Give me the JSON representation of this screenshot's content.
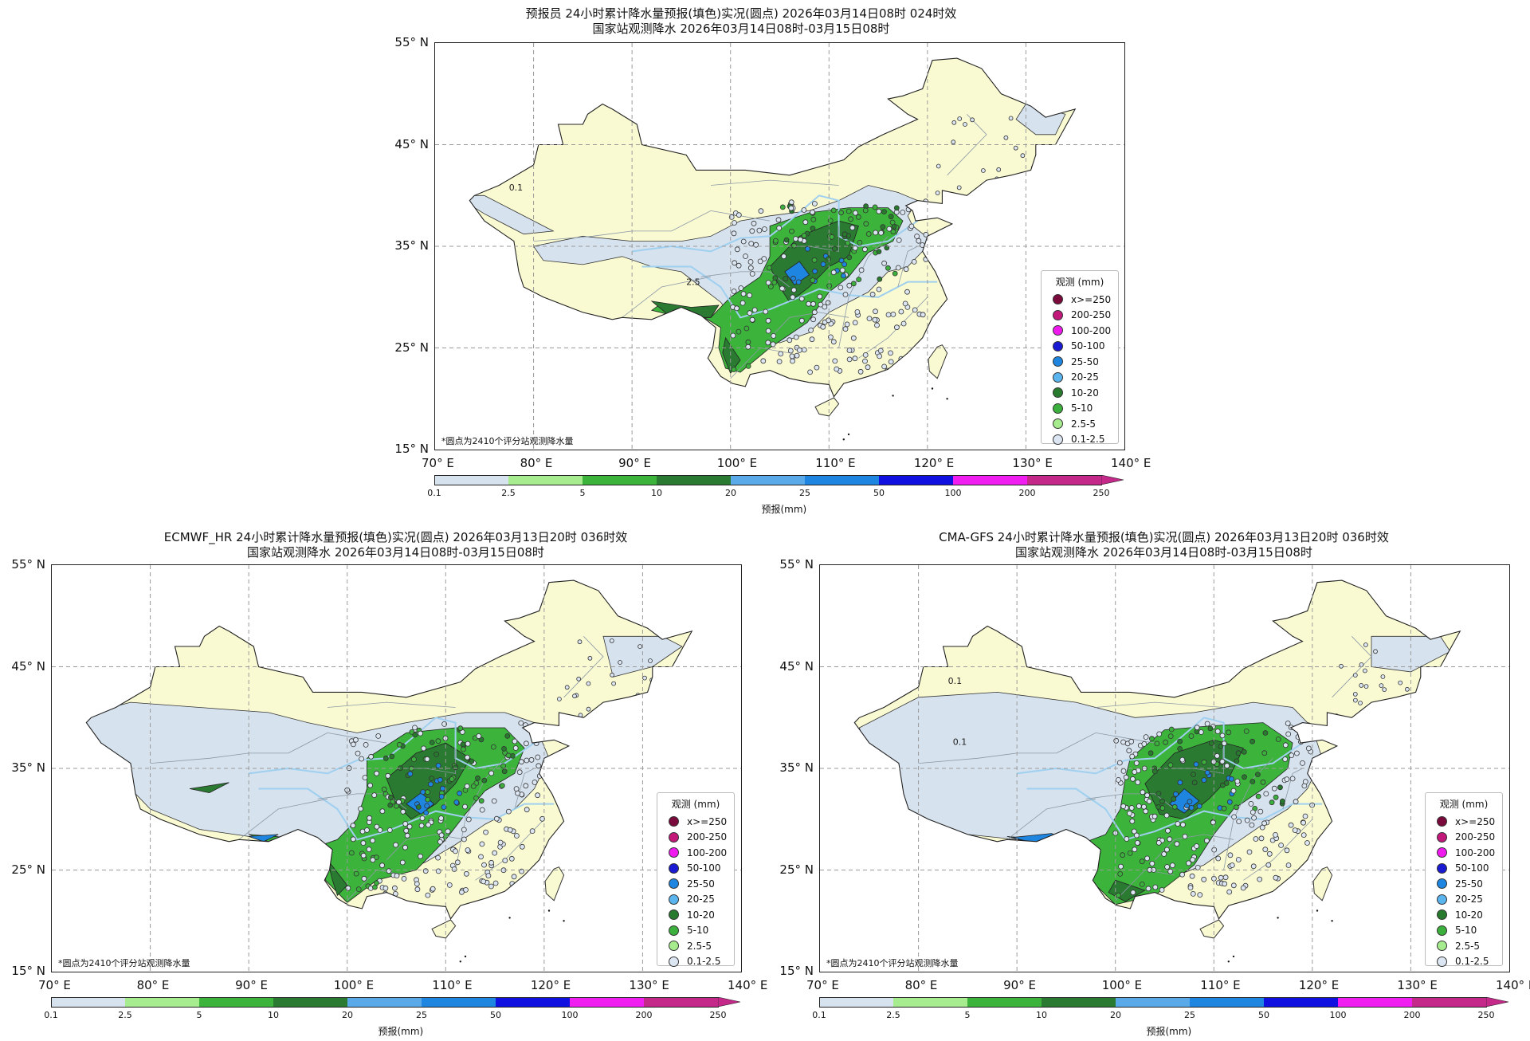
{
  "panels": [
    {
      "title_line1": "预报员 24小时累计降水量预报(填色)实况(圆点) 2026年03月14日08时 024时效",
      "title_line2": "国家站观测降水 2026年03月14日08时-03月15日08时"
    },
    {
      "title_line1": "ECMWF_HR 24小时累计降水量预报(填色)实况(圆点) 2026年03月13日20时 036时效",
      "title_line2": "国家站观测降水 2026年03月14日08时-03月15日08时"
    },
    {
      "title_line1": "CMA-GFS 24小时累计降水量预报(填色)实况(圆点) 2026年03月13日20时 036时效",
      "title_line2": "国家站观测降水 2026年03月14日08时-03月15日08时"
    }
  ],
  "axes": {
    "lat_labels": [
      "55° N",
      "45° N",
      "35° N",
      "25° N",
      "15° N"
    ],
    "lon_labels": [
      "70° E",
      "80° E",
      "90° E",
      "100° E",
      "110° E",
      "120° E",
      "130° E",
      "140° E"
    ]
  },
  "note": "*圆点为2410个评分站观测降水量",
  "legend": {
    "title": "观测 (mm)",
    "items": [
      {
        "label": "x>=250",
        "color": "#7a0a3c"
      },
      {
        "label": "200-250",
        "color": "#c2187a"
      },
      {
        "label": "100-200",
        "color": "#ee1aee"
      },
      {
        "label": "50-100",
        "color": "#1a1ad2"
      },
      {
        "label": "25-50",
        "color": "#1e86e0"
      },
      {
        "label": "20-25",
        "color": "#5ab4ee"
      },
      {
        "label": "10-20",
        "color": "#287a2e"
      },
      {
        "label": "5-10",
        "color": "#3cb03c"
      },
      {
        "label": "2.5-5",
        "color": "#a6ec8e"
      },
      {
        "label": "0.1-2.5",
        "color": "#dce6f2"
      }
    ]
  },
  "colorbar": {
    "ticks": [
      "0.1",
      "2.5",
      "5",
      "10",
      "20",
      "25",
      "50",
      "100",
      "200",
      "250"
    ],
    "colors": [
      "#d6e2ee",
      "#a8ec90",
      "#3cb43c",
      "#2a7a32",
      "#5aaaea",
      "#1e86e0",
      "#1010e0",
      "#f01ef0",
      "#c42888"
    ],
    "label": "预报(mm)"
  },
  "map_colors": {
    "land": "#fafad2",
    "light_rain": "#d6e2ee",
    "moderate": "#3cb43c",
    "heavy": "#2a7a32",
    "blue": "#1e86e0",
    "water": "#9fd0f0"
  },
  "contour_labels": {
    "forecaster": [
      "0.1",
      "2.5"
    ],
    "cma": [
      "0.1",
      "0.1"
    ]
  }
}
